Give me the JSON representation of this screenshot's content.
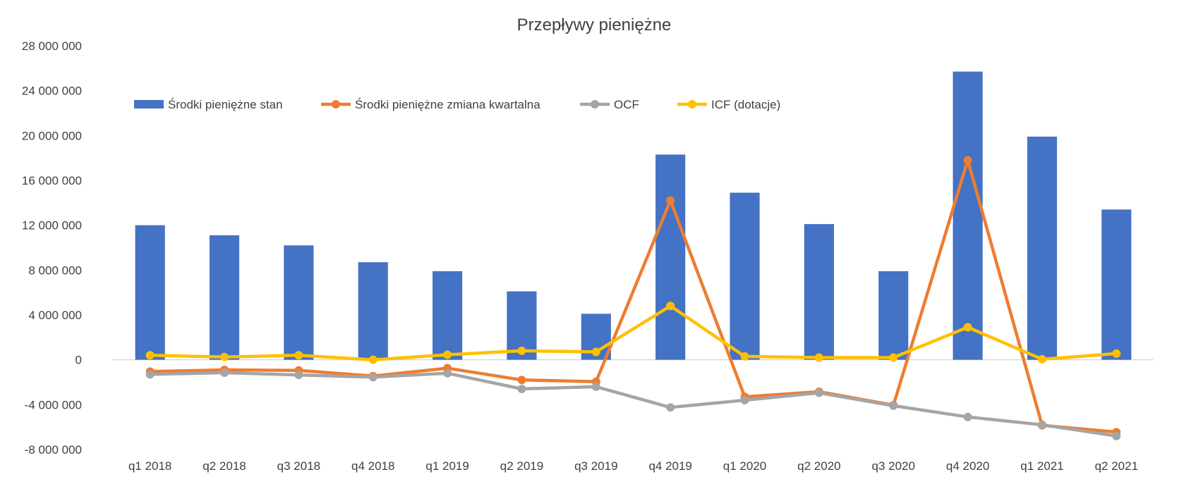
{
  "chart_data": {
    "type": "bar",
    "title": "Przepływy pieniężne",
    "xlabel": "",
    "ylabel": "",
    "ylim": [
      -8000000,
      28000000
    ],
    "yticks": [
      28000000,
      24000000,
      20000000,
      16000000,
      12000000,
      8000000,
      4000000,
      0,
      -4000000,
      -8000000
    ],
    "ytick_labels": [
      "28 000 000",
      "24 000 000",
      "20 000 000",
      "16 000 000",
      "12 000 000",
      "8 000 000",
      "4 000 000",
      "0",
      "-4 000 000",
      "-8 000 000"
    ],
    "grid": false,
    "legend_position": "top-left",
    "categories": [
      "q1 2018",
      "q2 2018",
      "q3 2018",
      "q4 2018",
      "q1 2019",
      "q2 2019",
      "q3 2019",
      "q4 2019",
      "q1 2020",
      "q2 2020",
      "q3 2020",
      "q4 2020",
      "q1 2021",
      "q2 2021"
    ],
    "series": [
      {
        "name": "Środki pieniężne stan",
        "type": "bar",
        "color": "#4472C4",
        "values": [
          12000000,
          11100000,
          10200000,
          8700000,
          7900000,
          6100000,
          4100000,
          18300000,
          14900000,
          12100000,
          7900000,
          25700000,
          19900000,
          13400000
        ]
      },
      {
        "name": "Środki pieniężne zmiana kwartalna",
        "type": "line",
        "color": "#ED7D31",
        "values": [
          -1050000,
          -900000,
          -950000,
          -1450000,
          -750000,
          -1800000,
          -1950000,
          14200000,
          -3300000,
          -2850000,
          -4050000,
          17800000,
          -5850000,
          -6450000
        ]
      },
      {
        "name": "OCF",
        "type": "line",
        "color": "#A5A5A5",
        "values": [
          -1300000,
          -1150000,
          -1350000,
          -1550000,
          -1200000,
          -2600000,
          -2400000,
          -4250000,
          -3600000,
          -2950000,
          -4100000,
          -5100000,
          -5800000,
          -6800000
        ]
      },
      {
        "name": "ICF (dotacje)",
        "type": "line",
        "color": "#FFC000",
        "values": [
          400000,
          250000,
          400000,
          0,
          450000,
          800000,
          700000,
          4800000,
          300000,
          200000,
          200000,
          2900000,
          50000,
          550000
        ]
      }
    ]
  }
}
